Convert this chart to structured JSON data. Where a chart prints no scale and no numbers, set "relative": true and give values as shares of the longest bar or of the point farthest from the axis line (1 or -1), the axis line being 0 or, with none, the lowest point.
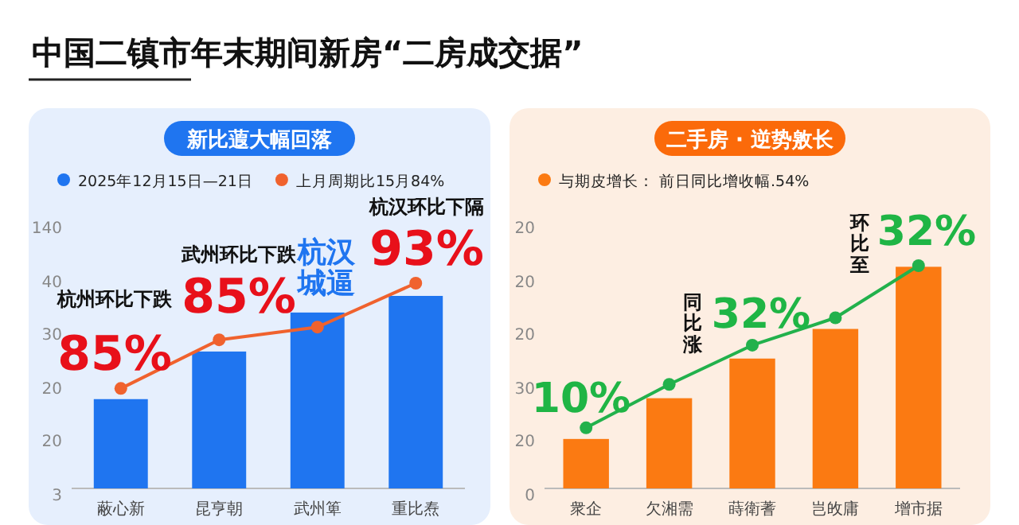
{
  "chart_data": [
    {
      "type": "bar",
      "relative": true,
      "title": "中国二镇市年末期间新房“二房成交据”",
      "subtitle": "新比蕸大幅回落",
      "categories": [
        "蔽心新",
        "昆亨朝",
        "武州箄",
        "重比焘"
      ],
      "series": [
        {
          "name": "2025年12月15日—21日",
          "color": "#1f75f0",
          "values": [
            0.435,
            0.667,
            0.857,
            0.938
          ]
        },
        {
          "type": "line",
          "name": "上月周期比15月84%",
          "color": "#f0622e",
          "values": [
            0.487,
            0.724,
            0.786,
            1
          ]
        }
      ],
      "legend": "top",
      "marker": "circle",
      "annotations": [
        "杭州环比下跌",
        "85%",
        "武州环比下跌",
        "85%",
        "杭汉城逼",
        "杭汉环比下隔",
        "93%",
        "140",
        "40",
        "30",
        "20",
        "20",
        "3"
      ]
    },
    {
      "type": "bar",
      "relative": true,
      "subtitle": "二手房 · 逆势敫长",
      "categories": [
        "衆企",
        "欠湘需",
        "蒔衛蓍",
        "岂敀庸",
        "增市据"
      ],
      "series": [
        {
          "name": "与期皮增长： 前日同比增收幅.54%",
          "color": "#fb7a12",
          "values": [
            0.222,
            0.405,
            0.583,
            0.716,
            0.995
          ]
        },
        {
          "type": "line",
          "color": "#22b14c",
          "values": [
            0.272,
            0.467,
            0.643,
            0.766,
            1
          ]
        }
      ],
      "legend": "top",
      "marker": "circle",
      "annotations": [
        "10%",
        "同比涨",
        "32%",
        "环比至",
        "32%",
        "20",
        "20",
        "20",
        "30",
        "20",
        "0"
      ]
    }
  ]
}
